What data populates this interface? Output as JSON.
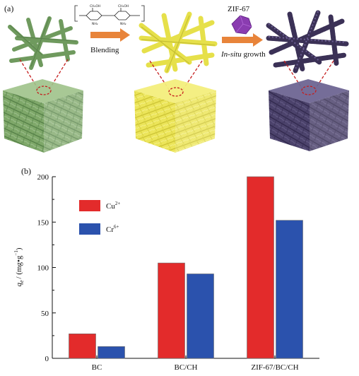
{
  "panel_a": {
    "label": "(a)",
    "step1_label": "Blending",
    "step2_reagent": "ZIF-67",
    "step2_label_italic": "In-situ",
    "step2_label_rest": " growth",
    "colors": {
      "bc": "#6f9a5e",
      "bc_ch": "#e6e04a",
      "zif": "#453a63",
      "arrow": "#e8843a",
      "zif_crystal": "#8a3cb0",
      "zoom": "#c51d1d"
    }
  },
  "chart_data": {
    "panel_label": "(b)",
    "type": "bar",
    "categories": [
      "BC",
      "BC/CH",
      "ZIF-67/BC/CH"
    ],
    "series": [
      {
        "name": "Cu2+",
        "name_base": "Cu",
        "name_sup": "2+",
        "color": "#e32b2b",
        "values": [
          27,
          105,
          200
        ]
      },
      {
        "name": "Cr6+",
        "name_base": "Cr",
        "name_sup": "6+",
        "color": "#2b52ad",
        "values": [
          13,
          93,
          152
        ]
      }
    ],
    "ylabel": {
      "q": "q",
      "q_sub": "e",
      "unit": "/ (mg•g",
      "unit_sup": "−1",
      "unit_end": ")"
    },
    "ylim": [
      0,
      200
    ],
    "yticks": [
      0,
      50,
      100,
      150,
      200
    ],
    "legend_position": "top-left",
    "grid": false
  }
}
